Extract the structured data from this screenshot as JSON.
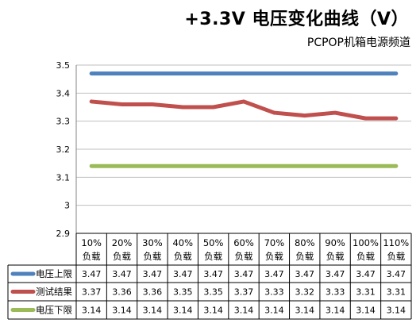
{
  "chart_data": {
    "type": "line",
    "title": "+3.3V 电压变化曲线（V）",
    "subtitle": "PCPOP机箱电源频道",
    "categories": [
      "10%\n负载",
      "20%\n负载",
      "30%\n负载",
      "40%\n负载",
      "50%\n负载",
      "60%\n负载",
      "70%\n负载",
      "80%\n负载",
      "90%\n负载",
      "100%\n负载",
      "110%\n负载"
    ],
    "yticks": [
      "3.5",
      "3.4",
      "3.3",
      "3.2",
      "3.1",
      "3",
      "2.9"
    ],
    "ylim": [
      2.9,
      3.5
    ],
    "grid": true,
    "legend": "data-table-left",
    "series": [
      {
        "name": "电压上限",
        "color": "#4f81bd",
        "values": [
          3.47,
          3.47,
          3.47,
          3.47,
          3.47,
          3.47,
          3.47,
          3.47,
          3.47,
          3.47,
          3.47
        ],
        "labels": [
          "3.47",
          "3.47",
          "3.47",
          "3.47",
          "3.47",
          "3.47",
          "3.47",
          "3.47",
          "3.47",
          "3.47",
          "3.47"
        ]
      },
      {
        "name": "测试结果",
        "color": "#c0504d",
        "values": [
          3.37,
          3.36,
          3.36,
          3.35,
          3.35,
          3.37,
          3.33,
          3.32,
          3.33,
          3.31,
          3.31
        ],
        "labels": [
          "3.37",
          "3.36",
          "3.36",
          "3.35",
          "3.35",
          "3.37",
          "3.33",
          "3.32",
          "3.33",
          "3.31",
          "3.31"
        ]
      },
      {
        "name": "电压下限",
        "color": "#9bbb59",
        "values": [
          3.14,
          3.14,
          3.14,
          3.14,
          3.14,
          3.14,
          3.14,
          3.14,
          3.14,
          3.14,
          3.14
        ],
        "labels": [
          "3.14",
          "3.14",
          "3.14",
          "3.14",
          "3.14",
          "3.14",
          "3.14",
          "3.14",
          "3.14",
          "3.14",
          "3.14"
        ]
      }
    ]
  }
}
